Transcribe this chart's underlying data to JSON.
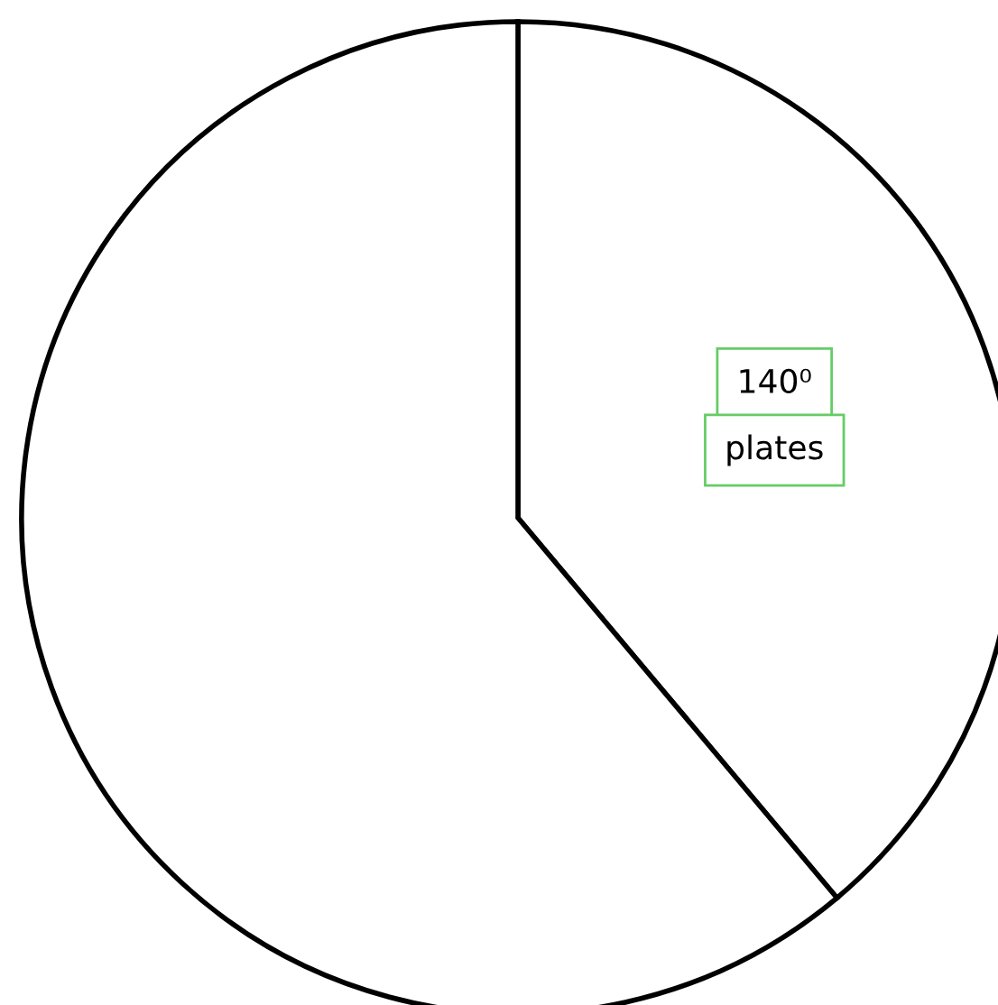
{
  "chart_data": {
    "type": "pie",
    "categories": [
      "plates",
      null
    ],
    "values": [
      140,
      220
    ],
    "colors": [
      "#ffffff",
      "#ffffff"
    ],
    "value_labels": [
      "140⁰",
      null
    ]
  }
}
